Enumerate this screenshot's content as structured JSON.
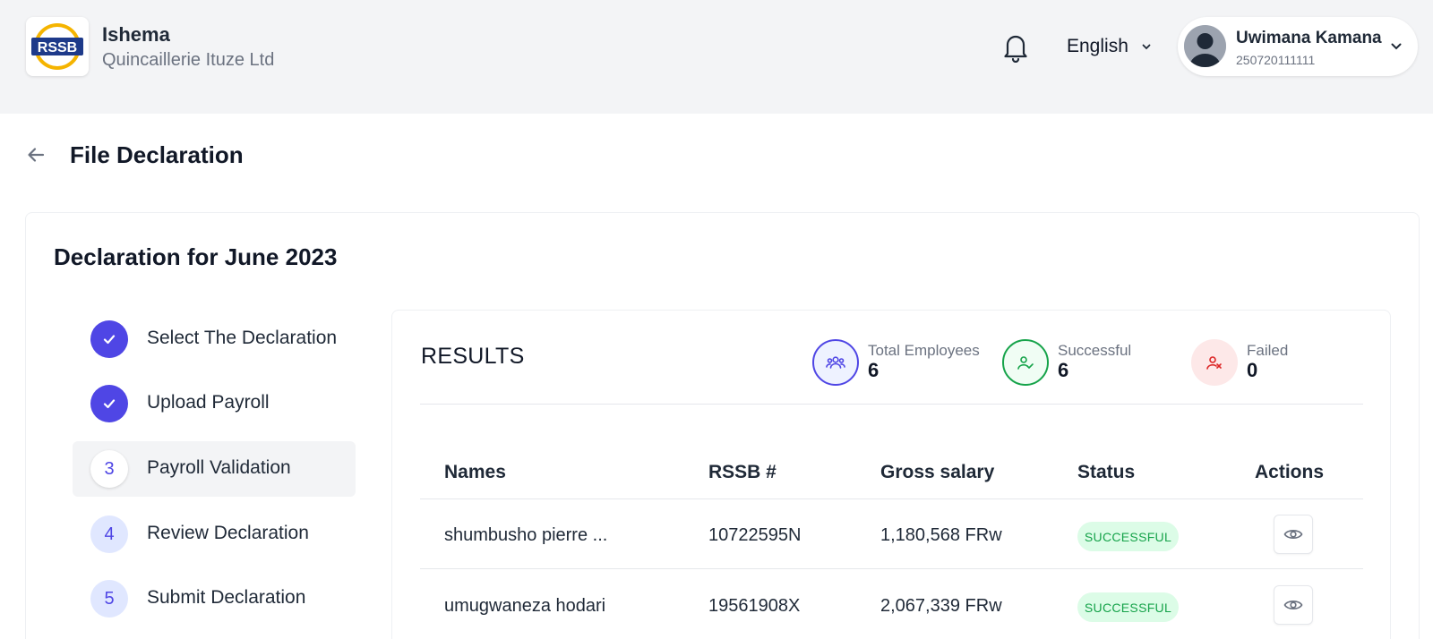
{
  "header": {
    "org_name": "Ishema",
    "org_subtitle": "Quincaillerie Ituze Ltd",
    "language": "English",
    "user": {
      "name": "Uwimana Kamana",
      "phone": "250720111111"
    }
  },
  "page": {
    "title": "File Declaration",
    "declaration_title": "Declaration for June 2023"
  },
  "steps": [
    {
      "label": "Select The Declaration",
      "state": "done"
    },
    {
      "label": "Upload Payroll",
      "state": "done"
    },
    {
      "number": "3",
      "label": "Payroll Validation",
      "state": "current"
    },
    {
      "number": "4",
      "label": "Review Declaration",
      "state": "pending"
    },
    {
      "number": "5",
      "label": "Submit Declaration",
      "state": "pending"
    }
  ],
  "results": {
    "title": "RESULTS",
    "stats": [
      {
        "label": "Total Employees",
        "value": "6",
        "color": "#4f46e5"
      },
      {
        "label": "Successful",
        "value": "6",
        "color": "#16a34a"
      },
      {
        "label": "Failed",
        "value": "0",
        "color": "#dc2626"
      }
    ]
  },
  "table": {
    "headers": [
      "Names",
      "RSSB #",
      "Gross salary",
      "Status",
      "Actions"
    ],
    "rows": [
      {
        "name": "shumbusho pierre ...",
        "rssb": "10722595N",
        "salary": "1,180,568 FRw",
        "status": "SUCCESSFUL"
      },
      {
        "name": "umugwaneza hodari",
        "rssb": "19561908X",
        "salary": "2,067,339 FRw",
        "status": "SUCCESSFUL"
      }
    ]
  },
  "colors": {
    "accent": "#4f46e5",
    "success": "#16a34a",
    "danger": "#dc2626"
  }
}
